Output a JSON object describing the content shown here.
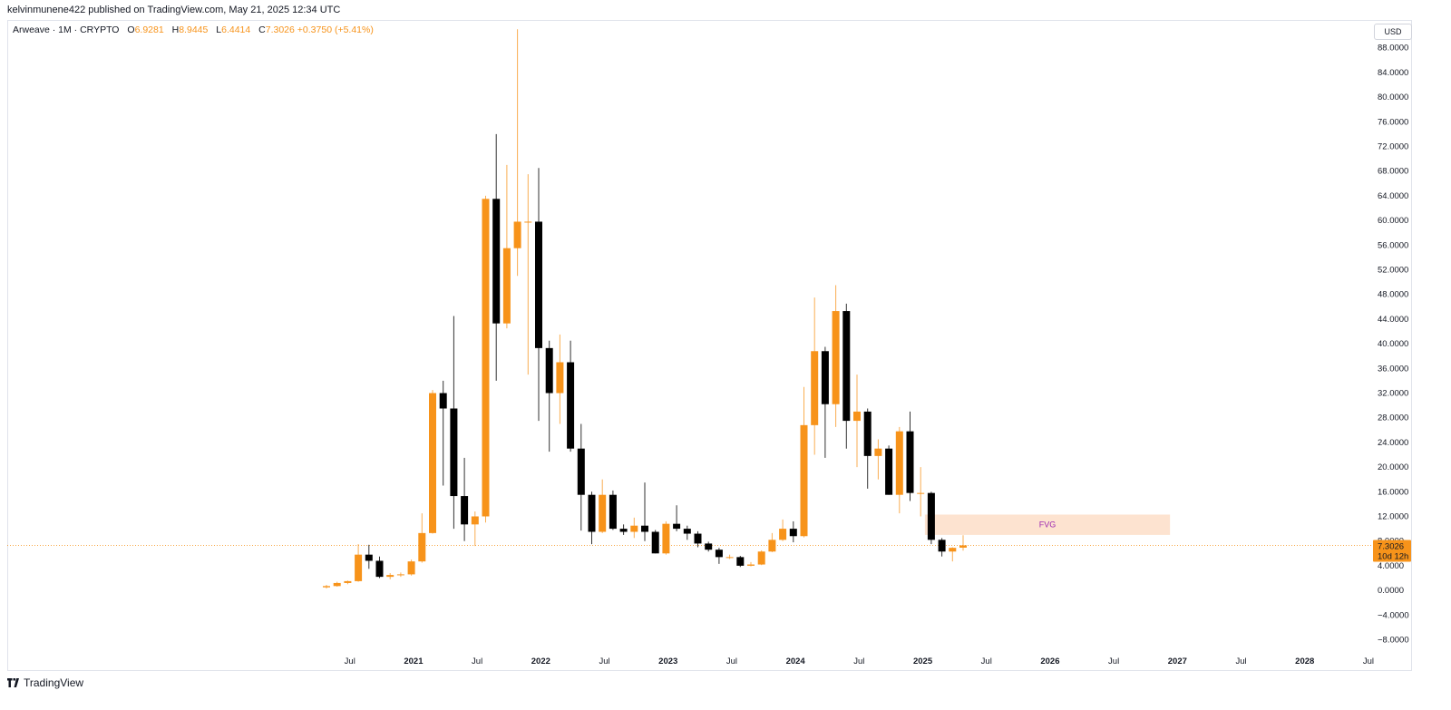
{
  "header": {
    "published": "kelvinmunene422 published on TradingView.com, May 21, 2025 12:34 UTC"
  },
  "legend": {
    "symbol": "Arweave · 1M · CRYPTO",
    "open_label": "O",
    "open": "6.9281",
    "high_label": "H",
    "high": "8.9445",
    "low_label": "L",
    "low": "6.4414",
    "close_label": "C",
    "close": "7.3026",
    "change": "+0.3750 (+5.41%)"
  },
  "currency_button": "USD",
  "brand": "TradingView",
  "price_tag": {
    "price": "7.3026",
    "countdown": "10d 12h"
  },
  "colors": {
    "up": "#f7931a",
    "down": "#000000",
    "fvg_fill": "#fde3d0",
    "fvg_text": "#9c27b0",
    "grid_line": "#e0e3eb"
  },
  "chart_data": {
    "type": "candlestick",
    "timeframe": "1M",
    "ylim": [
      -8,
      92
    ],
    "y_ticks": [
      "88.0000",
      "84.0000",
      "80.0000",
      "76.0000",
      "72.0000",
      "68.0000",
      "64.0000",
      "60.0000",
      "56.0000",
      "52.0000",
      "48.0000",
      "44.0000",
      "40.0000",
      "36.0000",
      "32.0000",
      "28.0000",
      "24.0000",
      "20.0000",
      "16.0000",
      "12.0000",
      "8.0000",
      "4.0000",
      "0.0000",
      "−4.0000",
      "−8.0000"
    ],
    "x_ticks": [
      {
        "label": "Jul",
        "index": 2.2,
        "bold": false
      },
      {
        "label": "2021",
        "index": 8.2,
        "bold": true
      },
      {
        "label": "Jul",
        "index": 14.2,
        "bold": false
      },
      {
        "label": "2022",
        "index": 20.2,
        "bold": true
      },
      {
        "label": "Jul",
        "index": 26.2,
        "bold": false
      },
      {
        "label": "2023",
        "index": 32.2,
        "bold": true
      },
      {
        "label": "Jul",
        "index": 38.2,
        "bold": false
      },
      {
        "label": "2024",
        "index": 44.2,
        "bold": true
      },
      {
        "label": "Jul",
        "index": 50.2,
        "bold": false
      },
      {
        "label": "2025",
        "index": 56.2,
        "bold": true
      },
      {
        "label": "Jul",
        "index": 62.2,
        "bold": false
      },
      {
        "label": "2026",
        "index": 68.2,
        "bold": true
      },
      {
        "label": "Jul",
        "index": 74.2,
        "bold": false
      },
      {
        "label": "2027",
        "index": 80.2,
        "bold": true
      },
      {
        "label": "Jul",
        "index": 86.2,
        "bold": false
      },
      {
        "label": "2028",
        "index": 92.2,
        "bold": true
      },
      {
        "label": "Jul",
        "index": 98.2,
        "bold": false
      }
    ],
    "candles": [
      {
        "o": 0.5,
        "h": 0.9,
        "l": 0.3,
        "c": 0.7
      },
      {
        "o": 0.7,
        "h": 1.4,
        "l": 0.6,
        "c": 1.2
      },
      {
        "o": 1.2,
        "h": 1.6,
        "l": 1.0,
        "c": 1.5
      },
      {
        "o": 1.5,
        "h": 7.5,
        "l": 1.4,
        "c": 5.8
      },
      {
        "o": 5.8,
        "h": 7.4,
        "l": 3.5,
        "c": 4.8
      },
      {
        "o": 4.8,
        "h": 5.5,
        "l": 2.0,
        "c": 2.2
      },
      {
        "o": 2.2,
        "h": 2.8,
        "l": 1.8,
        "c": 2.5
      },
      {
        "o": 2.5,
        "h": 2.9,
        "l": 2.2,
        "c": 2.6
      },
      {
        "o": 2.6,
        "h": 5.0,
        "l": 2.4,
        "c": 4.7
      },
      {
        "o": 4.7,
        "h": 12.5,
        "l": 4.5,
        "c": 9.3
      },
      {
        "o": 9.3,
        "h": 32.5,
        "l": 9.2,
        "c": 32.0
      },
      {
        "o": 32.0,
        "h": 34.0,
        "l": 17.0,
        "c": 29.5
      },
      {
        "o": 29.5,
        "h": 44.5,
        "l": 10.0,
        "c": 15.3
      },
      {
        "o": 15.3,
        "h": 21.5,
        "l": 8.0,
        "c": 10.7
      },
      {
        "o": 10.7,
        "h": 12.8,
        "l": 7.2,
        "c": 12.0
      },
      {
        "o": 12.0,
        "h": 64.0,
        "l": 11.0,
        "c": 63.5
      },
      {
        "o": 63.5,
        "h": 74.0,
        "l": 34.0,
        "c": 43.3
      },
      {
        "o": 43.3,
        "h": 69.0,
        "l": 42.5,
        "c": 55.5
      },
      {
        "o": 55.5,
        "h": 91.0,
        "l": 51.0,
        "c": 59.8
      },
      {
        "o": 59.8,
        "h": 67.5,
        "l": 35.0,
        "c": 59.8
      },
      {
        "o": 59.8,
        "h": 68.5,
        "l": 27.5,
        "c": 39.3
      },
      {
        "o": 39.3,
        "h": 40.5,
        "l": 22.5,
        "c": 32.0
      },
      {
        "o": 32.0,
        "h": 41.5,
        "l": 27.0,
        "c": 37.0
      },
      {
        "o": 37.0,
        "h": 40.5,
        "l": 22.5,
        "c": 23.0
      },
      {
        "o": 23.0,
        "h": 27.0,
        "l": 9.7,
        "c": 15.5
      },
      {
        "o": 15.5,
        "h": 16.0,
        "l": 7.5,
        "c": 9.5
      },
      {
        "o": 9.5,
        "h": 18.0,
        "l": 9.3,
        "c": 15.5
      },
      {
        "o": 15.5,
        "h": 16.2,
        "l": 9.8,
        "c": 10.0
      },
      {
        "o": 10.0,
        "h": 10.7,
        "l": 9.0,
        "c": 9.5
      },
      {
        "o": 9.5,
        "h": 11.8,
        "l": 8.5,
        "c": 10.5
      },
      {
        "o": 10.5,
        "h": 17.5,
        "l": 8.0,
        "c": 9.5
      },
      {
        "o": 9.5,
        "h": 9.8,
        "l": 6.0,
        "c": 6.0
      },
      {
        "o": 6.0,
        "h": 11.2,
        "l": 5.8,
        "c": 10.8
      },
      {
        "o": 10.8,
        "h": 13.8,
        "l": 9.6,
        "c": 10.0
      },
      {
        "o": 10.0,
        "h": 10.5,
        "l": 8.2,
        "c": 9.2
      },
      {
        "o": 9.2,
        "h": 9.6,
        "l": 7.0,
        "c": 7.6
      },
      {
        "o": 7.6,
        "h": 7.9,
        "l": 6.3,
        "c": 6.6
      },
      {
        "o": 6.6,
        "h": 6.9,
        "l": 4.3,
        "c": 5.4
      },
      {
        "o": 5.4,
        "h": 5.8,
        "l": 5.1,
        "c": 5.4
      },
      {
        "o": 5.4,
        "h": 5.6,
        "l": 3.8,
        "c": 4.0
      },
      {
        "o": 4.0,
        "h": 4.6,
        "l": 3.9,
        "c": 4.2
      },
      {
        "o": 4.2,
        "h": 6.5,
        "l": 4.1,
        "c": 6.3
      },
      {
        "o": 6.3,
        "h": 9.3,
        "l": 6.2,
        "c": 8.2
      },
      {
        "o": 8.2,
        "h": 11.5,
        "l": 8.0,
        "c": 10.0
      },
      {
        "o": 10.0,
        "h": 11.2,
        "l": 7.8,
        "c": 8.8
      },
      {
        "o": 8.8,
        "h": 33.0,
        "l": 8.6,
        "c": 26.8
      },
      {
        "o": 26.8,
        "h": 47.5,
        "l": 22.0,
        "c": 38.8
      },
      {
        "o": 38.8,
        "h": 39.5,
        "l": 21.5,
        "c": 30.2
      },
      {
        "o": 30.2,
        "h": 49.5,
        "l": 26.5,
        "c": 45.3
      },
      {
        "o": 45.3,
        "h": 46.5,
        "l": 23.0,
        "c": 27.5
      },
      {
        "o": 27.5,
        "h": 35.0,
        "l": 20.0,
        "c": 29.0
      },
      {
        "o": 29.0,
        "h": 29.5,
        "l": 16.5,
        "c": 21.8
      },
      {
        "o": 21.8,
        "h": 24.5,
        "l": 18.0,
        "c": 23.0
      },
      {
        "o": 23.0,
        "h": 23.5,
        "l": 15.5,
        "c": 15.5
      },
      {
        "o": 15.5,
        "h": 26.5,
        "l": 12.5,
        "c": 25.8
      },
      {
        "o": 25.8,
        "h": 29.0,
        "l": 14.5,
        "c": 15.8
      },
      {
        "o": 15.8,
        "h": 20.0,
        "l": 12.0,
        "c": 15.8
      },
      {
        "o": 15.8,
        "h": 16.0,
        "l": 7.5,
        "c": 8.2
      },
      {
        "o": 8.2,
        "h": 8.5,
        "l": 5.5,
        "c": 6.3
      },
      {
        "o": 6.3,
        "h": 7.0,
        "l": 4.7,
        "c": 6.9
      },
      {
        "o": 6.9281,
        "h": 8.9445,
        "l": 6.4414,
        "c": 7.3026
      }
    ],
    "annotations": [
      {
        "type": "zone",
        "label": "FVG",
        "x_start_index": 56.4,
        "x_end_index": 79.5,
        "y_low": 9.0,
        "y_high": 12.3
      }
    ],
    "last_price": 7.3026
  }
}
